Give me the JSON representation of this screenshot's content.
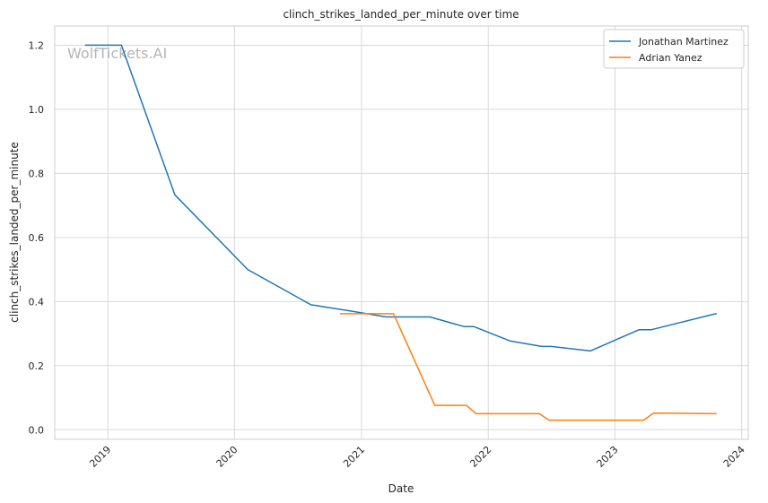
{
  "watermark": "WolfTickets.AI",
  "chart_data": {
    "type": "line",
    "title": "clinch_strikes_landed_per_minute over time",
    "xlabel": "Date",
    "ylabel": "clinch_strikes_landed_per_minute",
    "x_axis_type": "date",
    "xlim": [
      "2018-08-01",
      "2024-01-20"
    ],
    "ylim": [
      -0.03,
      1.26
    ],
    "x_ticks": [
      "2019",
      "2020",
      "2021",
      "2022",
      "2023",
      "2024"
    ],
    "y_ticks": [
      "0.0",
      "0.2",
      "0.4",
      "0.6",
      "0.8",
      "1.0",
      "1.2"
    ],
    "grid": true,
    "legend_position": "top-right",
    "series": [
      {
        "name": "Jonathan Martinez",
        "color": "#1f77b4",
        "points": [
          {
            "x": "2018-10-27",
            "y": 1.2
          },
          {
            "x": "2019-02-09",
            "y": 1.2
          },
          {
            "x": "2019-07-13",
            "y": 0.733
          },
          {
            "x": "2020-02-08",
            "y": 0.5
          },
          {
            "x": "2020-08-08",
            "y": 0.39
          },
          {
            "x": "2020-11-21",
            "y": 0.372
          },
          {
            "x": "2021-03-13",
            "y": 0.352
          },
          {
            "x": "2021-07-17",
            "y": 0.352
          },
          {
            "x": "2021-10-23",
            "y": 0.322
          },
          {
            "x": "2021-11-20",
            "y": 0.322
          },
          {
            "x": "2022-03-05",
            "y": 0.277
          },
          {
            "x": "2022-06-04",
            "y": 0.26
          },
          {
            "x": "2022-07-02",
            "y": 0.26
          },
          {
            "x": "2022-10-22",
            "y": 0.246
          },
          {
            "x": "2023-03-11",
            "y": 0.312
          },
          {
            "x": "2023-04-15",
            "y": 0.312
          },
          {
            "x": "2023-10-21",
            "y": 0.363
          }
        ]
      },
      {
        "name": "Adrian Yanez",
        "color": "#ff7f0e",
        "points": [
          {
            "x": "2020-10-31",
            "y": 0.362
          },
          {
            "x": "2021-04-03",
            "y": 0.362
          },
          {
            "x": "2021-07-31",
            "y": 0.076
          },
          {
            "x": "2021-10-30",
            "y": 0.076
          },
          {
            "x": "2021-11-27",
            "y": 0.05
          },
          {
            "x": "2022-05-28",
            "y": 0.05
          },
          {
            "x": "2022-06-25",
            "y": 0.03
          },
          {
            "x": "2023-03-25",
            "y": 0.03
          },
          {
            "x": "2023-04-22",
            "y": 0.052
          },
          {
            "x": "2023-10-21",
            "y": 0.05
          }
        ]
      }
    ]
  }
}
